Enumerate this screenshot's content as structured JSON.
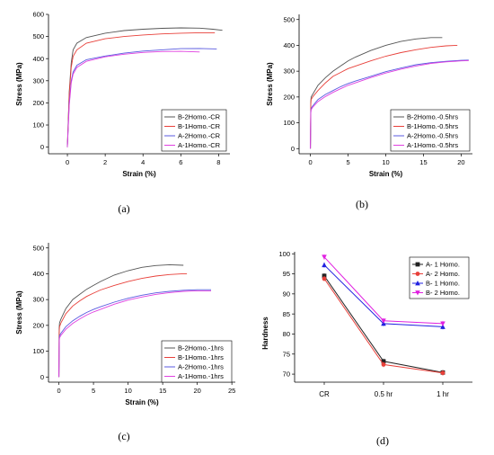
{
  "chart_data": [
    {
      "id": "a",
      "type": "line",
      "panel_label": "(a)",
      "xlabel": "Strain (%)",
      "ylabel": "Stress (MPa)",
      "xlim": [
        -1,
        8.6
      ],
      "ylim": [
        -30,
        600
      ],
      "xticks": [
        0,
        2,
        4,
        6,
        8
      ],
      "yticks": [
        0,
        100,
        200,
        300,
        400,
        500,
        600
      ],
      "legend_position": "bottom-right",
      "series": [
        {
          "name": "B-2Homo.-CR",
          "color": "#555555",
          "x": [
            0,
            0.1,
            0.2,
            0.3,
            0.5,
            1.0,
            2.0,
            3.0,
            4.0,
            5.0,
            6.0,
            7.0,
            7.7,
            8.2
          ],
          "y": [
            0,
            250,
            380,
            440,
            470,
            495,
            515,
            527,
            533,
            537,
            539,
            538,
            533,
            528
          ]
        },
        {
          "name": "B-1Homo.-CR",
          "color": "#e8403a",
          "x": [
            0,
            0.1,
            0.2,
            0.3,
            0.5,
            1.0,
            2.0,
            3.0,
            4.0,
            5.0,
            6.0,
            7.0,
            7.8
          ],
          "y": [
            0,
            240,
            360,
            410,
            440,
            470,
            490,
            500,
            507,
            512,
            515,
            517,
            517
          ]
        },
        {
          "name": "A-2Homo.-CR",
          "color": "#5a5ae0",
          "x": [
            0,
            0.1,
            0.2,
            0.3,
            0.5,
            1.0,
            2.0,
            3.0,
            4.0,
            5.0,
            6.0,
            7.0,
            7.9
          ],
          "y": [
            0,
            200,
            300,
            340,
            370,
            395,
            412,
            425,
            434,
            440,
            445,
            446,
            444
          ]
        },
        {
          "name": "A-1Homo.-CR",
          "color": "#e040e0",
          "x": [
            0,
            0.1,
            0.2,
            0.3,
            0.5,
            1.0,
            2.0,
            3.0,
            4.0,
            5.0,
            6.0,
            7.0
          ],
          "y": [
            0,
            190,
            290,
            330,
            360,
            388,
            408,
            420,
            428,
            432,
            433,
            430
          ]
        }
      ]
    },
    {
      "id": "b",
      "type": "line",
      "panel_label": "(b)",
      "xlabel": "Strain (%)",
      "ylabel": "Stress (MPa)",
      "xlim": [
        -1.5,
        21.5
      ],
      "ylim": [
        -20,
        520
      ],
      "xticks": [
        0,
        5,
        10,
        15,
        20
      ],
      "yticks": [
        0,
        100,
        200,
        300,
        400,
        500
      ],
      "legend_position": "bottom-right",
      "series": [
        {
          "name": "B-2Homo.-0.5hrs",
          "color": "#555555",
          "x": [
            0,
            0.05,
            0.1,
            0.3,
            1,
            2,
            3,
            4,
            5,
            6,
            8,
            10,
            12,
            14,
            16,
            17.5
          ],
          "y": [
            0,
            180,
            200,
            210,
            245,
            275,
            300,
            320,
            340,
            355,
            380,
            400,
            415,
            425,
            430,
            430
          ]
        },
        {
          "name": "B-1Homo.-0.5hrs",
          "color": "#e8403a",
          "x": [
            0,
            0.05,
            0.1,
            0.3,
            1,
            2,
            3,
            4,
            5,
            6,
            8,
            10,
            12,
            14,
            16,
            18,
            19.5
          ],
          "y": [
            0,
            170,
            190,
            200,
            225,
            255,
            280,
            295,
            310,
            320,
            340,
            358,
            372,
            383,
            392,
            398,
            400
          ]
        },
        {
          "name": "A-2Homo.-0.5hrs",
          "color": "#5a5ae0",
          "x": [
            0,
            0.05,
            0.1,
            0.3,
            1,
            2,
            3,
            4,
            5,
            6,
            8,
            10,
            12,
            14,
            16,
            18,
            20,
            21
          ],
          "y": [
            0,
            140,
            155,
            165,
            190,
            210,
            225,
            240,
            252,
            262,
            280,
            298,
            312,
            325,
            333,
            338,
            342,
            343
          ]
        },
        {
          "name": "A-1Homo.-0.5hrs",
          "color": "#e040e0",
          "x": [
            0,
            0.05,
            0.1,
            0.3,
            1,
            2,
            3,
            4,
            5,
            6,
            8,
            10,
            12,
            14,
            16,
            18,
            20,
            21
          ],
          "y": [
            0,
            135,
            150,
            160,
            182,
            202,
            218,
            232,
            245,
            255,
            275,
            293,
            308,
            320,
            330,
            336,
            340,
            341
          ]
        }
      ]
    },
    {
      "id": "c",
      "type": "line",
      "panel_label": "(c)",
      "xlabel": "Strain (%)",
      "ylabel": "Stress (MPa)",
      "xlim": [
        -1.5,
        25.5
      ],
      "ylim": [
        -20,
        520
      ],
      "xticks": [
        0,
        5,
        10,
        15,
        20,
        25
      ],
      "yticks": [
        0,
        100,
        200,
        300,
        400,
        500
      ],
      "legend_position": "bottom-right",
      "series": [
        {
          "name": "B-2Homo.-1hrs",
          "color": "#555555",
          "x": [
            0,
            0.05,
            0.1,
            0.3,
            1,
            2,
            3,
            4,
            5,
            6,
            8,
            10,
            12,
            14,
            16,
            18
          ],
          "y": [
            0,
            190,
            210,
            225,
            265,
            300,
            320,
            340,
            355,
            370,
            395,
            412,
            425,
            432,
            435,
            433
          ]
        },
        {
          "name": "B-1Homo.-1hrs",
          "color": "#e8403a",
          "x": [
            0,
            0.05,
            0.1,
            0.3,
            1,
            2,
            3,
            4,
            5,
            6,
            8,
            10,
            12,
            14,
            16,
            18,
            18.5
          ],
          "y": [
            0,
            175,
            195,
            210,
            245,
            275,
            295,
            312,
            325,
            337,
            355,
            370,
            382,
            391,
            397,
            400,
            400
          ]
        },
        {
          "name": "A-2Homo.-1hrs",
          "color": "#5a5ae0",
          "x": [
            0,
            0.05,
            0.1,
            0.3,
            1,
            2,
            3,
            4,
            5,
            6,
            8,
            10,
            12,
            14,
            16,
            18,
            20,
            22
          ],
          "y": [
            0,
            140,
            160,
            170,
            195,
            218,
            235,
            250,
            262,
            272,
            290,
            305,
            317,
            326,
            332,
            336,
            338,
            338
          ]
        },
        {
          "name": "A-1Homo.-1hrs",
          "color": "#e040e0",
          "x": [
            0,
            0.05,
            0.1,
            0.3,
            1,
            2,
            3,
            4,
            5,
            6,
            8,
            10,
            12,
            14,
            16,
            18,
            20,
            22
          ],
          "y": [
            0,
            135,
            152,
            162,
            185,
            208,
            225,
            240,
            252,
            262,
            282,
            298,
            310,
            320,
            327,
            332,
            334,
            334
          ]
        }
      ]
    },
    {
      "id": "d",
      "type": "line",
      "panel_label": "(d)",
      "xlabel": "",
      "ylabel": "Hardness",
      "categories": [
        "CR",
        "0.5 hr",
        "1 hr"
      ],
      "ylim": [
        68,
        100.5
      ],
      "yticks": [
        70,
        75,
        80,
        85,
        90,
        95,
        100
      ],
      "legend_position": "top-right",
      "series": [
        {
          "name": "A- 1 Homo.",
          "color": "#222222",
          "marker": "square",
          "values": [
            94.5,
            73.2,
            70.4
          ]
        },
        {
          "name": "A- 2 Homo.",
          "color": "#e8403a",
          "marker": "circle",
          "values": [
            93.8,
            72.4,
            70.3
          ]
        },
        {
          "name": "B- 1 Homo.",
          "color": "#2020e0",
          "marker": "triangle-up",
          "values": [
            97.2,
            82.6,
            81.8
          ]
        },
        {
          "name": "B- 2 Homo.",
          "color": "#e020e0",
          "marker": "triangle-down",
          "values": [
            99.2,
            83.3,
            82.6
          ]
        }
      ]
    }
  ]
}
